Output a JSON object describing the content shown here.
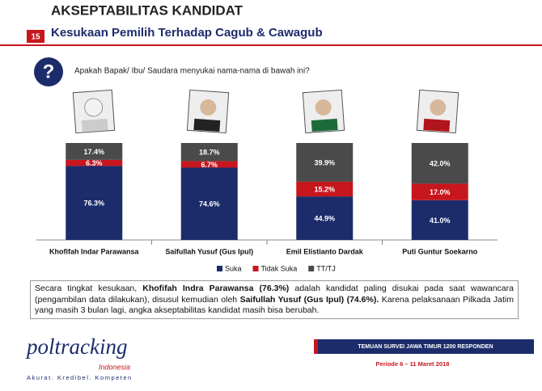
{
  "slide": {
    "title": "AKSEPTABILITAS KANDIDAT",
    "number": "15",
    "subtitle": "Kesukaan Pemilih Terhadap Cagub & Cawagub",
    "question_icon": "?",
    "question": "Apakah Bapak/ Ibu/ Saudara menyukai nama-nama di bawah ini?",
    "paragraph": [
      "Secara tingkat kesukaan, ",
      "Khofifah Indra Parawansa (76.3%)",
      " adalah kandidat paling disukai pada saat wawancara (pengambilan data dilakukan), disusul kemudian oleh ",
      "Saifullah Yusuf (Gus Ipul) (74.6%).",
      " Karena pelaksanaan Pilkada Jatim yang masih 3 bulan lagi, angka akseptabilitas kandidat masih bisa berubah."
    ],
    "logo": "poltracking",
    "logo_sub": "Indonesia",
    "tagline": "Akurat. Kredibel. Kompeten",
    "banner": "TEMUAN SURVEI JAWA TIMUR 1200 RESPONDEN",
    "period": "Periode 6 – 11 Maret 2018"
  },
  "chart_data": {
    "type": "stacked_bar",
    "categories": [
      "Khofifah Indar Parawansa",
      "Saifullah Yusuf (Gus Ipul)",
      "Emil Elistianto Dardak",
      "Puti Guntur Soekarno"
    ],
    "series": [
      {
        "name": "Suka",
        "color": "#1c2c6b",
        "values": [
          76.3,
          74.6,
          44.9,
          41.0
        ],
        "value_labels": [
          "76.3%",
          "74.6%",
          "44.9%",
          "41.0%"
        ]
      },
      {
        "name": "Tidak Suka",
        "color": "#c8161d",
        "values": [
          6.3,
          6.7,
          15.2,
          17.0
        ],
        "value_labels": [
          "6.3%",
          "6.7%",
          "15.2%",
          "17.0%"
        ]
      },
      {
        "name": "TT/TJ",
        "color": "#4a4a4a",
        "values": [
          17.4,
          18.7,
          39.9,
          42.0
        ],
        "value_labels": [
          "17.4%",
          "18.7%",
          "39.9%",
          "42.0%"
        ]
      }
    ]
  }
}
